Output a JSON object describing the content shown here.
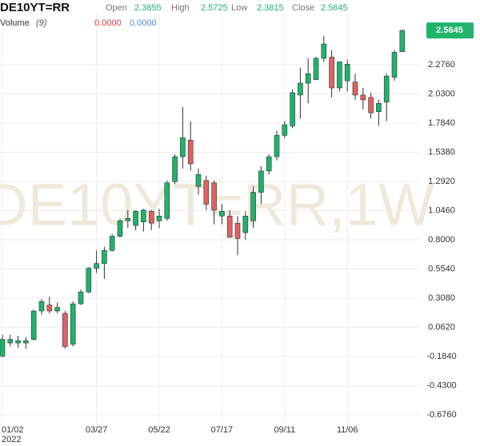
{
  "chart_data": {
    "type": "candlestick",
    "title": "DE10YT=RR",
    "watermark": "DE10YT=RR,1W",
    "ohlc_labels": [
      "Open",
      "High",
      "Low",
      "Close"
    ],
    "volume_label": "Volume",
    "volume_param": "(9)",
    "volume_values": [
      "0.0000",
      "0.0000"
    ],
    "volume_colors": [
      "#e03a3a",
      "#4a90d9"
    ],
    "up_color": "#1fb36c",
    "down_color": "#e0625f",
    "x_year_label": "2022",
    "categories": [
      "01/02",
      null,
      null,
      null,
      null,
      null,
      null,
      null,
      null,
      null,
      null,
      null,
      "03/27",
      null,
      null,
      null,
      null,
      null,
      null,
      null,
      "05/22",
      null,
      null,
      null,
      null,
      null,
      null,
      null,
      "07/17",
      null,
      null,
      null,
      null,
      null,
      null,
      null,
      "09/11",
      null,
      null,
      null,
      null,
      null,
      null,
      null,
      "11/06",
      null,
      null,
      null,
      null,
      null,
      null,
      null
    ],
    "open": [
      -0.18,
      -0.07,
      -0.07,
      -0.07,
      -0.04,
      0.2,
      0.25,
      0.2,
      0.18,
      -0.08,
      0.26,
      0.36,
      0.56,
      0.6,
      0.71,
      0.83,
      0.96,
      0.92,
      0.95,
      1.04,
      0.96,
      0.98,
      1.29,
      1.5,
      1.64,
      1.25,
      1.3,
      1.28,
      1.0,
      1.0,
      0.94,
      0.86,
      0.96,
      1.2,
      1.38,
      1.5,
      1.68,
      1.76,
      2.02,
      2.12,
      2.15,
      2.33,
      2.34,
      2.08,
      2.14,
      2.13,
      2.02,
      2.0,
      1.88,
      1.96,
      2.17,
      2.3855
    ],
    "high": [
      0.0,
      0.0,
      -0.01,
      -0.02,
      0.21,
      0.3,
      0.32,
      0.27,
      0.2,
      0.28,
      0.38,
      0.57,
      0.71,
      0.74,
      0.85,
      0.98,
      1.05,
      1.05,
      1.06,
      1.05,
      1.06,
      1.3,
      1.52,
      1.92,
      1.8,
      1.4,
      1.34,
      1.3,
      1.1,
      1.05,
      1.0,
      1.04,
      1.25,
      1.42,
      1.52,
      1.72,
      1.8,
      2.07,
      2.25,
      2.33,
      2.34,
      2.52,
      2.4,
      2.3,
      2.32,
      2.2,
      2.08,
      2.04,
      1.98,
      2.2,
      2.4,
      2.5725
    ],
    "low": [
      -0.19,
      -0.1,
      -0.11,
      -0.12,
      -0.05,
      0.17,
      0.18,
      0.18,
      -0.12,
      -0.1,
      0.25,
      0.35,
      0.52,
      0.47,
      0.7,
      0.82,
      0.9,
      0.88,
      0.87,
      0.88,
      0.9,
      0.96,
      1.27,
      1.4,
      1.38,
      1.18,
      1.05,
      0.93,
      0.93,
      0.82,
      0.67,
      0.8,
      0.9,
      1.1,
      1.35,
      1.47,
      1.66,
      1.74,
      1.82,
      1.95,
      2.15,
      2.3,
      2.0,
      2.05,
      2.05,
      1.98,
      1.9,
      1.82,
      1.76,
      1.8,
      2.14,
      2.3815
    ],
    "close": [
      -0.04,
      -0.04,
      -0.05,
      -0.05,
      0.2,
      0.28,
      0.2,
      0.23,
      -0.1,
      0.26,
      0.36,
      0.56,
      0.6,
      0.71,
      0.83,
      0.96,
      0.98,
      1.04,
      1.05,
      0.94,
      1.0,
      1.28,
      1.5,
      1.66,
      1.44,
      1.35,
      1.1,
      1.05,
      1.04,
      0.82,
      0.81,
      1.0,
      1.2,
      1.38,
      1.5,
      1.68,
      1.77,
      2.04,
      2.12,
      2.2,
      2.33,
      2.45,
      2.08,
      2.3,
      2.28,
      2.02,
      1.98,
      1.87,
      1.95,
      2.18,
      2.38,
      2.5645
    ],
    "ylim": [
      -0.75,
      2.7
    ],
    "yticks": [
      {
        "value": 2.276,
        "label": "2.2760"
      },
      {
        "value": 2.03,
        "label": "2.0300"
      },
      {
        "value": 1.784,
        "label": "1.7840"
      },
      {
        "value": 1.538,
        "label": "1.5380"
      },
      {
        "value": 1.292,
        "label": "1.2920"
      },
      {
        "value": 1.046,
        "label": "1.0460"
      },
      {
        "value": 0.8,
        "label": "0.8000"
      },
      {
        "value": 0.554,
        "label": "0.5540"
      },
      {
        "value": 0.308,
        "label": "0.3080"
      },
      {
        "value": 0.062,
        "label": "0.0620"
      },
      {
        "value": -0.184,
        "label": "-0.1840"
      },
      {
        "value": -0.43,
        "label": "-0.4300"
      },
      {
        "value": -0.676,
        "label": "-0.6760"
      }
    ],
    "grid": true
  }
}
